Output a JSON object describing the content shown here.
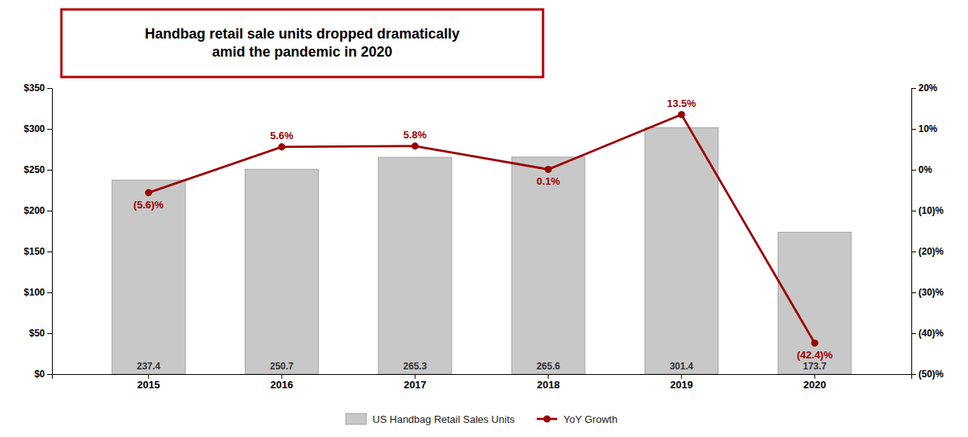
{
  "chart_data": {
    "type": "bar",
    "title": "Handbag retail sale units dropped dramatically\namid the pandemic in 2020",
    "categories": [
      "2015",
      "2016",
      "2017",
      "2018",
      "2019",
      "2020"
    ],
    "series": [
      {
        "name": "US Handbag Retail Sales Units",
        "type": "bar",
        "color": "#c8c8c8",
        "values": [
          237.4,
          250.7,
          265.3,
          265.6,
          301.4,
          173.7
        ]
      },
      {
        "name": "YoY Growth",
        "type": "line",
        "axis": "y2",
        "color": "#9b0000",
        "marker": "circle",
        "values": [
          -5.6,
          5.6,
          5.8,
          0.1,
          13.5,
          -42.4
        ],
        "value_labels": [
          "(5.6)%",
          "5.6%",
          "5.8%",
          "0.1%",
          "13.5%",
          "(42.4)%"
        ]
      }
    ],
    "ylim": [
      0,
      350
    ],
    "yticks": [
      {
        "value": 0,
        "label": "$0"
      },
      {
        "value": 50,
        "label": "$50"
      },
      {
        "value": 100,
        "label": "$100"
      },
      {
        "value": 150,
        "label": "$150"
      },
      {
        "value": 200,
        "label": "$200"
      },
      {
        "value": 250,
        "label": "$250"
      },
      {
        "value": 300,
        "label": "$300"
      },
      {
        "value": 350,
        "label": "$350"
      }
    ],
    "y2lim": [
      -50,
      20
    ],
    "y2ticks": [
      {
        "value": -50,
        "label": "(50)%"
      },
      {
        "value": -40,
        "label": "(40)%"
      },
      {
        "value": -30,
        "label": "(30)%"
      },
      {
        "value": -20,
        "label": "(20)%"
      },
      {
        "value": -10,
        "label": "(10)%"
      },
      {
        "value": 0,
        "label": "0%"
      },
      {
        "value": 10,
        "label": "10%"
      },
      {
        "value": 20,
        "label": "20%"
      }
    ],
    "data_labels": true,
    "legend": "bottom",
    "grid": false
  }
}
